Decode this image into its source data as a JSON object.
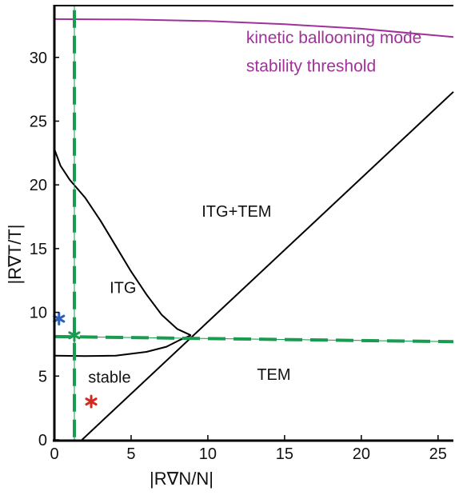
{
  "chart_data": {
    "type": "line",
    "xlabel": "|R∇N/N|",
    "ylabel": "|R∇T/T|",
    "xlim": [
      0,
      26
    ],
    "ylim": [
      0,
      34
    ],
    "xticks": [
      0,
      5,
      10,
      15,
      20,
      25
    ],
    "yticks": [
      0,
      5,
      10,
      15,
      20,
      25,
      30
    ],
    "grid": false,
    "series": [
      {
        "color": "#a0319b",
        "style": "solid",
        "points": [
          [
            0,
            33
          ],
          [
            5,
            32.97
          ],
          [
            10,
            32.85
          ],
          [
            15,
            32.6
          ],
          [
            20,
            32.25
          ],
          [
            26,
            31.6
          ]
        ]
      },
      {
        "color": "#000000",
        "style": "solid",
        "points": [
          [
            0,
            22.8
          ],
          [
            0.4,
            21.5
          ],
          [
            1,
            20.4
          ],
          [
            2,
            19.0
          ],
          [
            3,
            17.2
          ],
          [
            4,
            15.2
          ],
          [
            5,
            13.2
          ],
          [
            6,
            11.4
          ],
          [
            7,
            9.8
          ],
          [
            8,
            8.7
          ],
          [
            8.9,
            8.2
          ]
        ]
      },
      {
        "color": "#000000",
        "style": "solid",
        "points": [
          [
            0,
            6.6
          ],
          [
            2,
            6.57
          ],
          [
            4,
            6.6
          ],
          [
            6,
            6.9
          ],
          [
            7.3,
            7.3
          ],
          [
            8.2,
            7.85
          ],
          [
            8.9,
            8.2
          ]
        ]
      },
      {
        "color": "#000000",
        "style": "solid",
        "points": [
          [
            1.8,
            0
          ],
          [
            26,
            27.3
          ]
        ]
      },
      {
        "color": "#0e9a4b",
        "style": "thin",
        "points": [
          [
            1.3,
            34
          ],
          [
            1.3,
            0
          ]
        ]
      },
      {
        "color": "#0e9a4b",
        "style": "thin",
        "points": [
          [
            0,
            8.1
          ],
          [
            26,
            7.7
          ]
        ]
      },
      {
        "color": "#1a9b4f",
        "style": "dashed",
        "points": [
          [
            1.3,
            33.7
          ],
          [
            1.3,
            0
          ]
        ]
      },
      {
        "color": "#1a9b4f",
        "style": "dashed",
        "points": [
          [
            0,
            8.1
          ],
          [
            26,
            7.7
          ]
        ]
      }
    ],
    "markers": [
      {
        "x": 0.3,
        "y": 9.5,
        "color": "#2e5fb8"
      },
      {
        "x": 1.3,
        "y": 8.2,
        "color": "#1a9b4f"
      },
      {
        "x": 2.4,
        "y": 3.0,
        "color": "#d22a1e"
      }
    ],
    "annotations": [
      {
        "text": "ITG+TEM",
        "x": 9.6,
        "y": 17.5,
        "color": "#111111"
      },
      {
        "text": "ITG",
        "x": 3.6,
        "y": 11.5,
        "color": "#111111"
      },
      {
        "text": "stable",
        "x": 2.2,
        "y": 4.5,
        "color": "#111111"
      },
      {
        "text": "TEM",
        "x": 13.2,
        "y": 4.7,
        "color": "#111111"
      },
      {
        "text": "kinetic ballooning mode",
        "x": 12.5,
        "y": 31.1,
        "color": "#a0319b"
      },
      {
        "text": "stability threshold",
        "x": 12.5,
        "y": 28.9,
        "color": "#a0319b"
      }
    ]
  }
}
